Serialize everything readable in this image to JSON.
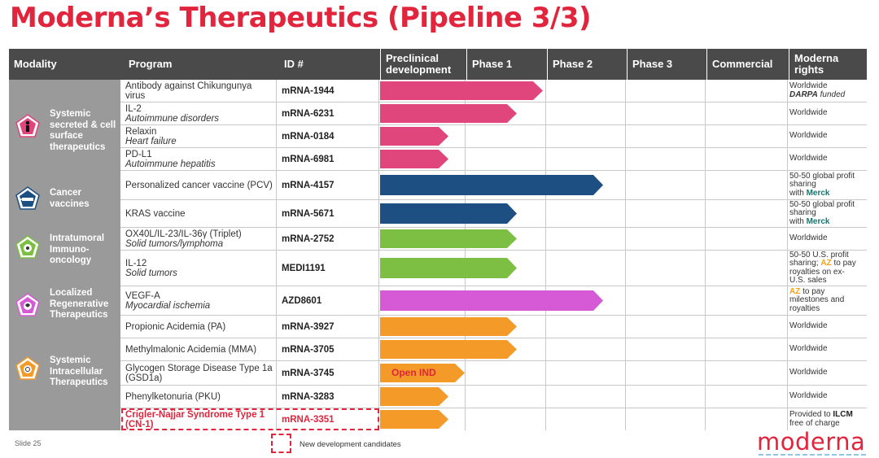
{
  "title": "Moderna’s Therapeutics (Pipeline 3/3)",
  "headers": {
    "modality": "Modality",
    "program": "Program",
    "id": "ID #",
    "preclinical_1": "Preclinical",
    "preclinical_2": "development",
    "phase1": "Phase 1",
    "phase2": "Phase 2",
    "phase3": "Phase 3",
    "commercial": "Commercial",
    "rights_1": "Moderna",
    "rights_2": "rights"
  },
  "modalities": [
    {
      "label": [
        "Systemic",
        "secreted & cell",
        "surface",
        "therapeutics"
      ],
      "icon": "person-icon",
      "color": "#e0457b"
    },
    {
      "label": [
        "Cancer",
        "vaccines"
      ],
      "icon": "syringe-icon",
      "color": "#1d4f82"
    },
    {
      "label": [
        "Intratumoral",
        "Immuno-",
        "oncology"
      ],
      "icon": "cell-icon",
      "color": "#7cbf43"
    },
    {
      "label": [
        "Localized",
        "Regenerative",
        "Therapeutics"
      ],
      "icon": "heart-icon",
      "color": "#d65ad6"
    },
    {
      "label": [
        "Systemic",
        "Intracellular",
        "Therapeutics"
      ],
      "icon": "enzyme-icon",
      "color": "#f39a28"
    }
  ],
  "programs": [
    {
      "name": "Antibody against Chikungunya virus",
      "sub": "",
      "id": "mRNA-1944",
      "phase_reached": "Phase 1",
      "rights": [
        "Worldwide"
      ],
      "rights_bold": "DARPA",
      "rights_rest": " funded"
    },
    {
      "name": "IL-2",
      "sub": "Autoimmune disorders",
      "id": "mRNA-6231",
      "phase_reached": "Phase 1",
      "rights": [
        "Worldwide"
      ]
    },
    {
      "name": "Relaxin",
      "sub": "Heart failure",
      "id": "mRNA-0184",
      "phase_reached": "Preclinical development",
      "rights": [
        "Worldwide"
      ]
    },
    {
      "name": "PD-L1",
      "sub": "Autoimmune hepatitis",
      "id": "mRNA-6981",
      "phase_reached": "Preclinical development",
      "rights": [
        "Worldwide"
      ]
    },
    {
      "name": "Personalized cancer vaccine (PCV)",
      "sub": "",
      "id": "mRNA-4157",
      "phase_reached": "Phase 2",
      "rights": [
        "50-50 global profit sharing"
      ],
      "rights_pre": "with ",
      "rights_partner": "Merck"
    },
    {
      "name": "KRAS vaccine",
      "sub": "",
      "id": "mRNA-5671",
      "phase_reached": "Phase 1",
      "rights": [
        "50-50 global profit sharing"
      ],
      "rights_pre": "with ",
      "rights_partner": "Merck"
    },
    {
      "name": "OX40L/IL-23/IL-36γ (Triplet)",
      "sub": "Solid tumors/lymphoma",
      "id": "mRNA-2752",
      "phase_reached": "Phase 1",
      "rights": [
        "Worldwide"
      ]
    },
    {
      "name": "IL-12",
      "sub": "Solid tumors",
      "id": "MEDI1191",
      "phase_reached": "Phase 1",
      "rights": [
        "50-50 U.S. profit"
      ],
      "rights_line2_pre": "sharing; ",
      "rights_partner": "AZ",
      "rights_line2_post": " to pay",
      "rights_tail": [
        "royalties on ex-",
        "U.S. sales"
      ]
    },
    {
      "name": "VEGF-A",
      "sub": "Myocardial ischemia",
      "id": "AZD8601",
      "phase_reached": "Phase 2",
      "rights_partner": "AZ",
      "rights_line1_post": " to pay",
      "rights_tail": [
        "milestones and",
        "royalties"
      ]
    },
    {
      "name": "Propionic Acidemia (PA)",
      "sub": "",
      "id": "mRNA-3927",
      "phase_reached": "Phase 1",
      "rights": [
        "Worldwide"
      ]
    },
    {
      "name": "Methylmalonic Acidemia (MMA)",
      "sub": "",
      "id": "mRNA-3705",
      "phase_reached": "Phase 1",
      "rights": [
        "Worldwide"
      ]
    },
    {
      "name": "Glycogen Storage Disease Type 1a (GSD1a)",
      "sub": "",
      "id": "mRNA-3745",
      "phase_reached": "Preclinical development",
      "bar_label": "Open IND",
      "rights": [
        "Worldwide"
      ]
    },
    {
      "name": "Phenylketonuria (PKU)",
      "sub": "",
      "id": "mRNA-3283",
      "phase_reached": "Preclinical development",
      "rights": [
        "Worldwide"
      ]
    },
    {
      "name": "Crigler-Najjar Syndrome Type 1 (CN-1)",
      "sub": "",
      "id": "mRNA-3351",
      "phase_reached": "Preclinical development",
      "new_candidate": true,
      "rights": [
        "Provided to "
      ],
      "rights_partner": "ILCM",
      "rights_tail": [
        "free of charge"
      ]
    }
  ],
  "footer": {
    "slide": "Slide 25",
    "legend": "New development candidates",
    "logo": "moderna"
  },
  "colors": {
    "accent": "#e1253c",
    "systemic": "#e0457b",
    "cancer": "#1d4f82",
    "intratumoral": "#7cbf43",
    "regenerative": "#d65ad6",
    "intracellular": "#f39a28",
    "merck": "#0e7a72",
    "az": "#f3a31a"
  }
}
